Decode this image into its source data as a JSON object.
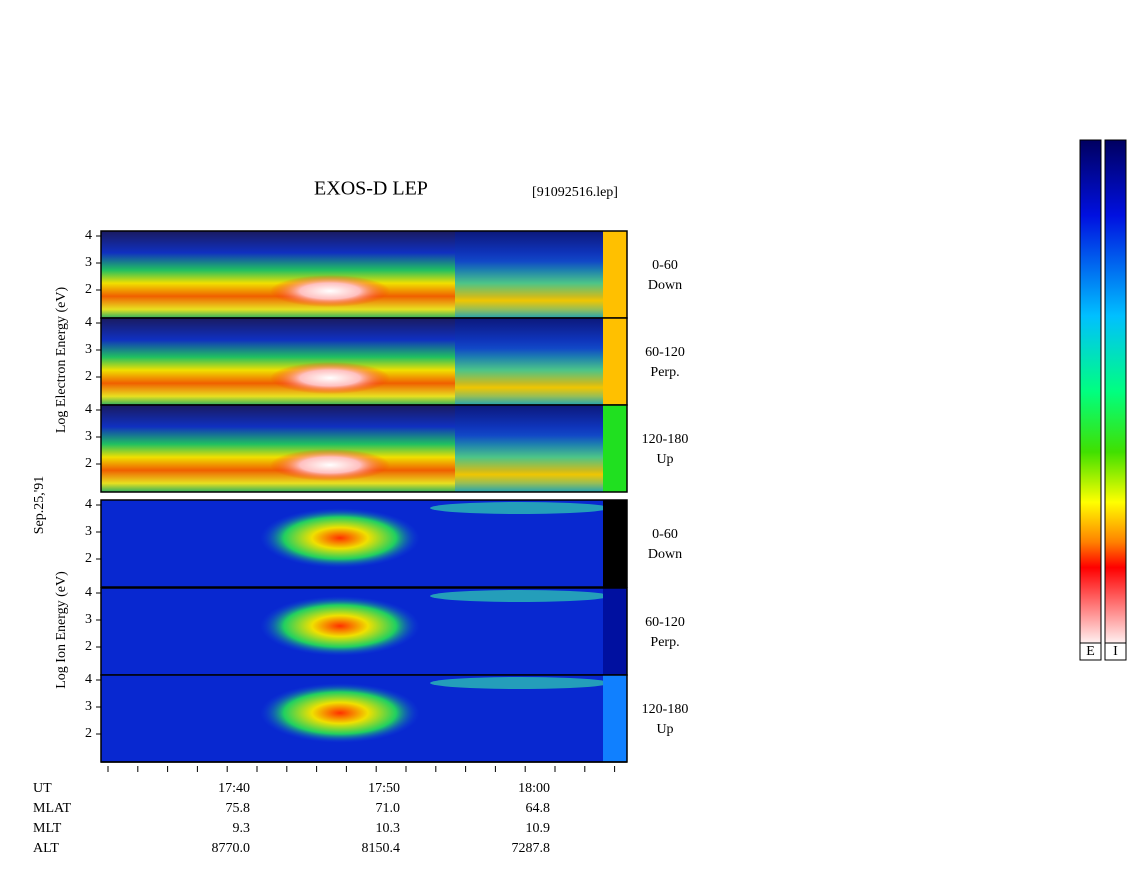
{
  "title": "EXOS-D LEP",
  "file": "[91092516.lep]",
  "date": "Sep.25,'91",
  "electron_axis_label": "Log Electron Energy (eV)",
  "ion_axis_label": "Log Ion Energy (eV)",
  "energy_tick_labels": [
    "4",
    "3",
    "2"
  ],
  "panels": [
    {
      "pitch": "0-60",
      "direction": "Down"
    },
    {
      "pitch": "60-120",
      "direction": "Perp."
    },
    {
      "pitch": "120-180",
      "direction": "Up"
    },
    {
      "pitch": "0-60",
      "direction": "Down"
    },
    {
      "pitch": "60-120",
      "direction": "Perp."
    },
    {
      "pitch": "120-180",
      "direction": "Up"
    }
  ],
  "time_rows": [
    {
      "label": "UT",
      "values": [
        "17:40",
        "17:50",
        "18:00"
      ]
    },
    {
      "label": "MLAT",
      "values": [
        "75.8",
        "71.0",
        "64.8"
      ]
    },
    {
      "label": "MLT",
      "values": [
        "9.3",
        "10.3",
        "10.9"
      ]
    },
    {
      "label": "ALT",
      "values": [
        "8770.0",
        "8150.4",
        "7287.8"
      ]
    }
  ],
  "colorbar_labels": [
    "E",
    "I"
  ]
}
